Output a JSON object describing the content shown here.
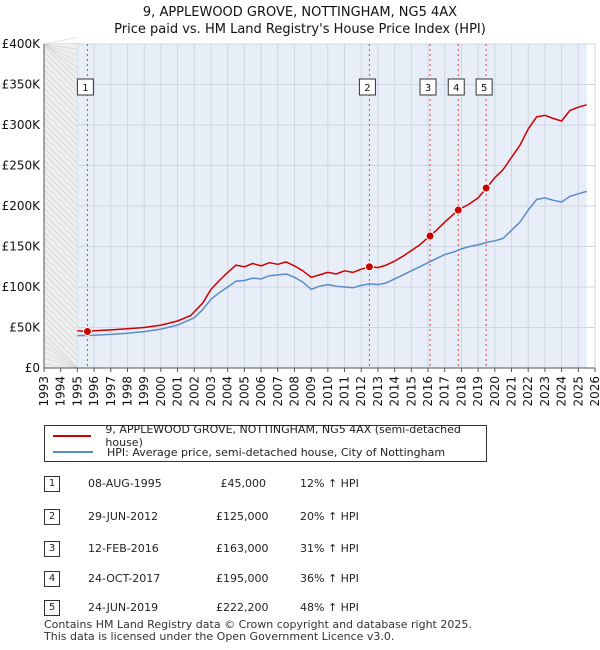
{
  "chart_data": {
    "type": "line",
    "title": "9, APPLEWOOD GROVE, NOTTINGHAM, NG5 4AX",
    "subtitle": "Price paid vs. HM Land Registry's House Price Index (HPI)",
    "xlim": [
      1993,
      2026
    ],
    "ylim": [
      0,
      400000
    ],
    "x_ticks": [
      "1993",
      "1994",
      "1995",
      "1996",
      "1997",
      "1998",
      "1999",
      "2000",
      "2001",
      "2002",
      "2003",
      "2004",
      "2005",
      "2006",
      "2007",
      "2008",
      "2009",
      "2010",
      "2011",
      "2012",
      "2013",
      "2014",
      "2015",
      "2016",
      "2017",
      "2018",
      "2019",
      "2020",
      "2021",
      "2022",
      "2023",
      "2024",
      "2025",
      "2026"
    ],
    "y_ticks": [
      {
        "value": 0,
        "label": "£0"
      },
      {
        "value": 50000,
        "label": "£50K"
      },
      {
        "value": 100000,
        "label": "£100K"
      },
      {
        "value": 150000,
        "label": "£150K"
      },
      {
        "value": 200000,
        "label": "£200K"
      },
      {
        "value": 250000,
        "label": "£250K"
      },
      {
        "value": 300000,
        "label": "£300K"
      },
      {
        "value": 350000,
        "label": "£350K"
      },
      {
        "value": 400000,
        "label": "£400K"
      }
    ],
    "data_start": 1995.0,
    "data_end": 2025.5,
    "series": [
      {
        "name": "9, APPLEWOOD GROVE, NOTTINGHAM, NG5 4AX (semi-detached house)",
        "color": "#cc0000",
        "points": [
          [
            1995.0,
            46000
          ],
          [
            1995.6,
            45000
          ],
          [
            1996.0,
            46000
          ],
          [
            1997.0,
            47000
          ],
          [
            1998.0,
            48500
          ],
          [
            1999.0,
            50000
          ],
          [
            2000.0,
            53000
          ],
          [
            2001.0,
            58000
          ],
          [
            2001.8,
            65000
          ],
          [
            2002.5,
            80000
          ],
          [
            2003.0,
            97000
          ],
          [
            2003.5,
            108000
          ],
          [
            2004.0,
            118000
          ],
          [
            2004.5,
            127000
          ],
          [
            2005.0,
            125000
          ],
          [
            2005.5,
            129000
          ],
          [
            2006.0,
            126000
          ],
          [
            2006.5,
            130000
          ],
          [
            2007.0,
            128000
          ],
          [
            2007.5,
            131000
          ],
          [
            2008.0,
            126000
          ],
          [
            2008.5,
            120000
          ],
          [
            2009.0,
            112000
          ],
          [
            2009.5,
            115000
          ],
          [
            2010.0,
            118000
          ],
          [
            2010.5,
            116000
          ],
          [
            2011.0,
            120000
          ],
          [
            2011.5,
            118000
          ],
          [
            2012.0,
            122000
          ],
          [
            2012.5,
            125000
          ],
          [
            2013.0,
            124000
          ],
          [
            2013.5,
            127000
          ],
          [
            2014.0,
            132000
          ],
          [
            2014.5,
            138000
          ],
          [
            2015.0,
            145000
          ],
          [
            2015.5,
            152000
          ],
          [
            2016.1,
            163000
          ],
          [
            2016.5,
            170000
          ],
          [
            2017.0,
            180000
          ],
          [
            2017.8,
            195000
          ],
          [
            2018.5,
            203000
          ],
          [
            2019.0,
            210000
          ],
          [
            2019.5,
            222200
          ],
          [
            2020.0,
            235000
          ],
          [
            2020.5,
            245000
          ],
          [
            2021.0,
            260000
          ],
          [
            2021.5,
            275000
          ],
          [
            2022.0,
            295000
          ],
          [
            2022.5,
            310000
          ],
          [
            2023.0,
            312000
          ],
          [
            2023.5,
            308000
          ],
          [
            2024.0,
            305000
          ],
          [
            2024.5,
            318000
          ],
          [
            2025.0,
            322000
          ],
          [
            2025.5,
            325000
          ]
        ]
      },
      {
        "name": "HPI: Average price, semi-detached house, City of Nottingham",
        "color": "#5b8cc8",
        "points": [
          [
            1995.0,
            40000
          ],
          [
            1996.0,
            40500
          ],
          [
            1997.0,
            41500
          ],
          [
            1998.0,
            43000
          ],
          [
            1999.0,
            45000
          ],
          [
            2000.0,
            48000
          ],
          [
            2001.0,
            53000
          ],
          [
            2002.0,
            62000
          ],
          [
            2002.5,
            72000
          ],
          [
            2003.0,
            85000
          ],
          [
            2003.5,
            93000
          ],
          [
            2004.0,
            100000
          ],
          [
            2004.5,
            107000
          ],
          [
            2005.0,
            108000
          ],
          [
            2005.5,
            111000
          ],
          [
            2006.0,
            110000
          ],
          [
            2006.5,
            114000
          ],
          [
            2007.0,
            115000
          ],
          [
            2007.5,
            116000
          ],
          [
            2008.0,
            112000
          ],
          [
            2008.5,
            106000
          ],
          [
            2009.0,
            97000
          ],
          [
            2009.5,
            101000
          ],
          [
            2010.0,
            103000
          ],
          [
            2010.5,
            101000
          ],
          [
            2011.0,
            100000
          ],
          [
            2011.5,
            99000
          ],
          [
            2012.0,
            102000
          ],
          [
            2012.5,
            104000
          ],
          [
            2013.0,
            103000
          ],
          [
            2013.5,
            105000
          ],
          [
            2014.0,
            110000
          ],
          [
            2014.5,
            115000
          ],
          [
            2015.0,
            120000
          ],
          [
            2015.5,
            125000
          ],
          [
            2016.0,
            130000
          ],
          [
            2016.5,
            135000
          ],
          [
            2017.0,
            140000
          ],
          [
            2017.5,
            143000
          ],
          [
            2018.0,
            147000
          ],
          [
            2018.5,
            150000
          ],
          [
            2019.0,
            152000
          ],
          [
            2019.5,
            155000
          ],
          [
            2020.0,
            157000
          ],
          [
            2020.5,
            160000
          ],
          [
            2021.0,
            170000
          ],
          [
            2021.5,
            180000
          ],
          [
            2022.0,
            195000
          ],
          [
            2022.5,
            208000
          ],
          [
            2023.0,
            210000
          ],
          [
            2023.5,
            207000
          ],
          [
            2024.0,
            205000
          ],
          [
            2024.5,
            212000
          ],
          [
            2025.0,
            215000
          ],
          [
            2025.5,
            218000
          ]
        ]
      }
    ],
    "sales": [
      {
        "num": "1",
        "date": "08-AUG-1995",
        "price": "£45,000",
        "hpi": "12% ↑ HPI",
        "x": 1995.6,
        "value": 45000
      },
      {
        "num": "2",
        "date": "29-JUN-2012",
        "price": "£125,000",
        "hpi": "20% ↑ HPI",
        "x": 2012.49,
        "value": 125000
      },
      {
        "num": "3",
        "date": "12-FEB-2016",
        "price": "£163,000",
        "hpi": "31% ↑ HPI",
        "x": 2016.12,
        "value": 163000
      },
      {
        "num": "4",
        "date": "24-OCT-2017",
        "price": "£195,000",
        "hpi": "36% ↑ HPI",
        "x": 2017.81,
        "value": 195000
      },
      {
        "num": "5",
        "date": "24-JUN-2019",
        "price": "£222,200",
        "hpi": "48% ↑ HPI",
        "x": 2019.48,
        "value": 222200
      }
    ],
    "legend": [
      {
        "label": "9, APPLEWOOD GROVE, NOTTINGHAM, NG5 4AX (semi-detached house)",
        "color": "#cc0000"
      },
      {
        "label": "HPI: Average price, semi-detached house, City of Nottingham",
        "color": "#5b8cc8"
      }
    ],
    "grid": true
  },
  "footer": {
    "line1": "Contains HM Land Registry data © Crown copyright and database right 2025.",
    "line2": "This data is licensed under the Open Government Licence v3.0."
  }
}
